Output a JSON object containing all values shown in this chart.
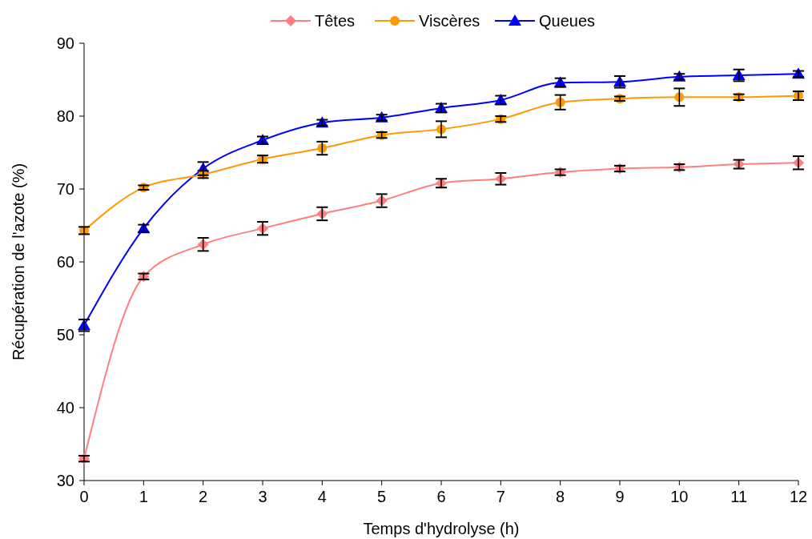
{
  "chart_data": {
    "type": "line",
    "xlabel": "Temps d'hydrolyse (h)",
    "ylabel": "Récupération de l'azote (%)",
    "x": [
      0,
      1,
      2,
      3,
      4,
      5,
      6,
      7,
      8,
      9,
      10,
      11,
      12
    ],
    "series": [
      {
        "name": "Têtes",
        "color": "#ff7f7f",
        "marker": "diamond",
        "values": [
          33.0,
          58.0,
          62.4,
          64.6,
          66.6,
          68.4,
          70.8,
          71.4,
          72.3,
          72.8,
          73.0,
          73.4,
          73.6
        ],
        "errors": [
          0.4,
          0.4,
          0.9,
          0.9,
          0.9,
          0.9,
          0.6,
          0.8,
          0.4,
          0.4,
          0.4,
          0.6,
          0.9
        ]
      },
      {
        "name": "Viscères",
        "color": "#ff9900",
        "marker": "circle",
        "values": [
          64.3,
          70.2,
          72.0,
          74.1,
          75.6,
          77.4,
          78.2,
          79.6,
          81.9,
          82.4,
          82.6,
          82.6,
          82.8
        ],
        "errors": [
          0.5,
          0.3,
          0.5,
          0.5,
          0.9,
          0.4,
          1.1,
          0.4,
          1.0,
          0.3,
          1.2,
          0.4,
          0.6
        ]
      },
      {
        "name": "Queues",
        "color": "#0000ff",
        "marker": "triangle",
        "values": [
          51.3,
          64.6,
          72.8,
          76.7,
          79.1,
          79.8,
          81.1,
          82.2,
          84.6,
          84.7,
          85.4,
          85.6,
          85.8
        ],
        "errors": [
          0.8,
          0.5,
          0.9,
          0.5,
          0.4,
          0.4,
          0.6,
          0.6,
          0.6,
          0.8,
          0.4,
          0.8,
          0.4
        ]
      }
    ],
    "xlim": [
      0,
      12
    ],
    "xticks": [
      0,
      1,
      2,
      3,
      4,
      5,
      6,
      7,
      8,
      9,
      10,
      11,
      12
    ],
    "ylim": [
      30,
      90
    ],
    "yticks": [
      30,
      40,
      50,
      60,
      70,
      80,
      90
    ],
    "legend": "top",
    "grid": false,
    "line_style": "solid"
  }
}
